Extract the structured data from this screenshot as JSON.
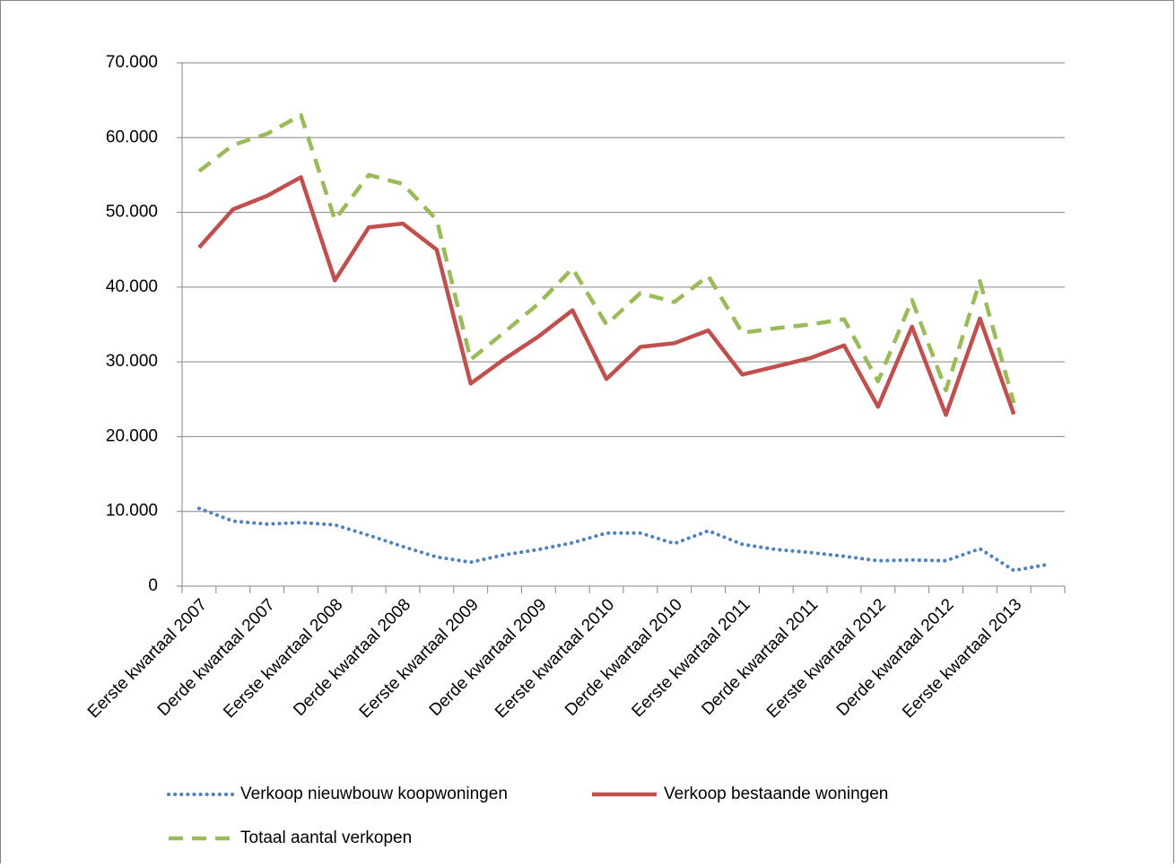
{
  "chart_data": {
    "type": "line",
    "categories": [
      "Eerste kwartaal 2007",
      null,
      "Derde kwartaal 2007",
      null,
      "Eerste kwartaal 2008",
      null,
      "Derde kwartaal 2008",
      null,
      "Eerste kwartaal 2009",
      null,
      "Derde kwartaal 2009",
      null,
      "Eerste kwartaal 2010",
      null,
      "Derde kwartaal 2010",
      null,
      "Eerste kwartaal 2011",
      null,
      "Derde kwartaal 2011",
      null,
      "Eerste kwartaal 2012",
      null,
      "Derde kwartaal 2012",
      null,
      "Eerste kwartaal 2013",
      null
    ],
    "series": [
      {
        "name": "Verkoop nieuwbouw koopwoningen",
        "color": "#4f81bd",
        "style": "dotted",
        "values": [
          10400,
          8700,
          8300,
          8500,
          8200,
          6800,
          5300,
          3900,
          3200,
          4200,
          4900,
          5800,
          7100,
          7100,
          5700,
          7400,
          5600,
          4900,
          4500,
          4000,
          3400,
          3500,
          3400,
          5000,
          2100,
          2900
        ]
      },
      {
        "name": "Verkoop bestaande woningen",
        "color": "#c0504d",
        "style": "solid",
        "values": [
          45300,
          50400,
          52200,
          54700,
          40900,
          48000,
          48500,
          45000,
          27100,
          30400,
          33400,
          36900,
          27700,
          32000,
          32500,
          34200,
          28300,
          29400,
          30500,
          32200,
          24000,
          34700,
          22900,
          35800,
          23000,
          null
        ]
      },
      {
        "name": "Totaal aantal verkopen",
        "color": "#9bbb59",
        "style": "dashed",
        "values": [
          55500,
          59000,
          60500,
          63000,
          49000,
          55000,
          53800,
          49000,
          30300,
          34000,
          37800,
          42500,
          35000,
          39200,
          38000,
          41500,
          33900,
          34500,
          35000,
          35700,
          27400,
          38300,
          26200,
          40800,
          24500,
          null
        ]
      }
    ],
    "ylim": [
      0,
      70000
    ],
    "yticks": [
      0,
      {
        "value": 10000,
        "label": "10.000"
      },
      {
        "value": 20000,
        "label": "20.000"
      },
      {
        "value": 30000,
        "label": "30.000"
      },
      {
        "value": 40000,
        "label": "40.000"
      },
      {
        "value": 50000,
        "label": "50.000"
      },
      {
        "value": 60000,
        "label": "60.000"
      },
      {
        "value": 70000,
        "label": "70.000"
      }
    ],
    "grid": true,
    "legend": "bottom"
  }
}
